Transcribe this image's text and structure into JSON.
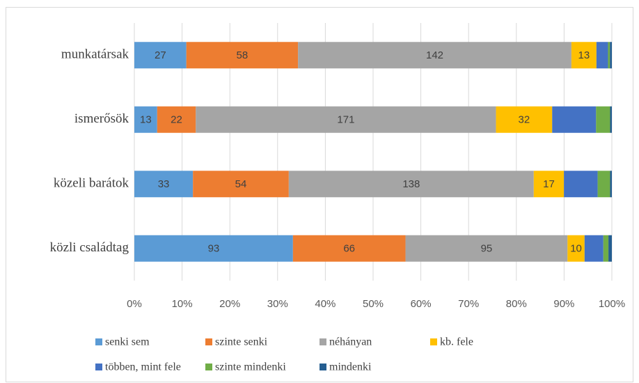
{
  "chart_data": {
    "type": "stacked_bar_100_horizontal",
    "categories": [
      "munkatársak",
      "ismerősök",
      "közeli barátok",
      "közli családtag"
    ],
    "series": [
      {
        "name": "senki sem",
        "color": "#5b9bd5",
        "values": [
          27,
          13,
          33,
          93
        ],
        "value_labels": [
          "27",
          "13",
          "33",
          "93"
        ]
      },
      {
        "name": "szinte senki",
        "color": "#ed7d31",
        "values": [
          58,
          22,
          54,
          66
        ],
        "value_labels": [
          "58",
          "22",
          "54",
          "66"
        ]
      },
      {
        "name": "néhányan",
        "color": "#a5a5a5",
        "values": [
          142,
          171,
          138,
          95
        ],
        "value_labels": [
          "142",
          "171",
          "138",
          "95"
        ]
      },
      {
        "name": "kb. fele",
        "color": "#ffc000",
        "values": [
          13,
          32,
          17,
          10
        ],
        "value_labels": [
          "13",
          "32",
          "17",
          "10"
        ]
      },
      {
        "name": "többen, mint fele",
        "color": "#4472c4",
        "values": [
          6,
          25,
          19,
          11
        ],
        "value_labels": [
          null,
          null,
          null,
          null
        ]
      },
      {
        "name": "szinte mindenki",
        "color": "#70ad47",
        "values": [
          1,
          8,
          7,
          3
        ],
        "value_labels": [
          null,
          null,
          null,
          null
        ]
      },
      {
        "name": "mindenki",
        "color": "#255e91",
        "values": [
          1,
          1,
          1,
          2
        ],
        "value_labels": [
          null,
          null,
          null,
          null
        ]
      }
    ],
    "xlim": [
      0,
      100
    ],
    "xticks": [
      {
        "value": 0,
        "label": "0%"
      },
      {
        "value": 10,
        "label": "10%"
      },
      {
        "value": 20,
        "label": "20%"
      },
      {
        "value": 30,
        "label": "30%"
      },
      {
        "value": 40,
        "label": "40%"
      },
      {
        "value": 50,
        "label": "50%"
      },
      {
        "value": 60,
        "label": "60%"
      },
      {
        "value": 70,
        "label": "70%"
      },
      {
        "value": 80,
        "label": "80%"
      },
      {
        "value": 90,
        "label": "90%"
      },
      {
        "value": 100,
        "label": "100%"
      }
    ],
    "grid": true,
    "legend": "bottom"
  }
}
